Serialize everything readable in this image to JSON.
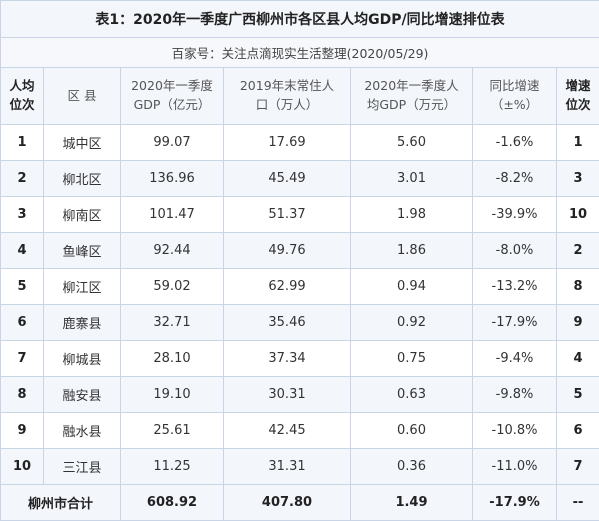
{
  "title": "表1：2020年一季度广西柳州市各区县人均GDP/同比增速排位表",
  "source": "百家号：关注点滴现实生活整理(2020/05/29)",
  "headers": {
    "rank": [
      "人均",
      "位次"
    ],
    "county": "区 县",
    "gdp": [
      "2020年一季度",
      "GDP（亿元）"
    ],
    "population": [
      "2019年末常住人",
      "口（万人）"
    ],
    "per_capita": [
      "2020年一季度人",
      "均GDP（万元）"
    ],
    "growth": [
      "同比增速",
      "（±%）"
    ],
    "growth_rank": [
      "增速",
      "位次"
    ]
  },
  "rows": [
    {
      "rank": "1",
      "county": "城中区",
      "gdp": "99.07",
      "population": "17.69",
      "per_capita": "5.60",
      "growth": "-1.6%",
      "growth_rank": "1"
    },
    {
      "rank": "2",
      "county": "柳北区",
      "gdp": "136.96",
      "population": "45.49",
      "per_capita": "3.01",
      "growth": "-8.2%",
      "growth_rank": "3"
    },
    {
      "rank": "3",
      "county": "柳南区",
      "gdp": "101.47",
      "population": "51.37",
      "per_capita": "1.98",
      "growth": "-39.9%",
      "growth_rank": "10"
    },
    {
      "rank": "4",
      "county": "鱼峰区",
      "gdp": "92.44",
      "population": "49.76",
      "per_capita": "1.86",
      "growth": "-8.0%",
      "growth_rank": "2"
    },
    {
      "rank": "5",
      "county": "柳江区",
      "gdp": "59.02",
      "population": "62.99",
      "per_capita": "0.94",
      "growth": "-13.2%",
      "growth_rank": "8"
    },
    {
      "rank": "6",
      "county": "鹿寨县",
      "gdp": "32.71",
      "population": "35.46",
      "per_capita": "0.92",
      "growth": "-17.9%",
      "growth_rank": "9"
    },
    {
      "rank": "7",
      "county": "柳城县",
      "gdp": "28.10",
      "population": "37.34",
      "per_capita": "0.75",
      "growth": "-9.4%",
      "growth_rank": "4"
    },
    {
      "rank": "8",
      "county": "融安县",
      "gdp": "19.10",
      "population": "30.31",
      "per_capita": "0.63",
      "growth": "-9.8%",
      "growth_rank": "5"
    },
    {
      "rank": "9",
      "county": "融水县",
      "gdp": "25.61",
      "population": "42.45",
      "per_capita": "0.60",
      "growth": "-10.8%",
      "growth_rank": "6"
    },
    {
      "rank": "10",
      "county": "三江县",
      "gdp": "11.25",
      "population": "31.31",
      "per_capita": "0.36",
      "growth": "-11.0%",
      "growth_rank": "7"
    }
  ],
  "total": {
    "label": "柳州市合计",
    "gdp": "608.92",
    "population": "407.80",
    "per_capita": "1.49",
    "growth": "-17.9%",
    "growth_rank": "--"
  }
}
